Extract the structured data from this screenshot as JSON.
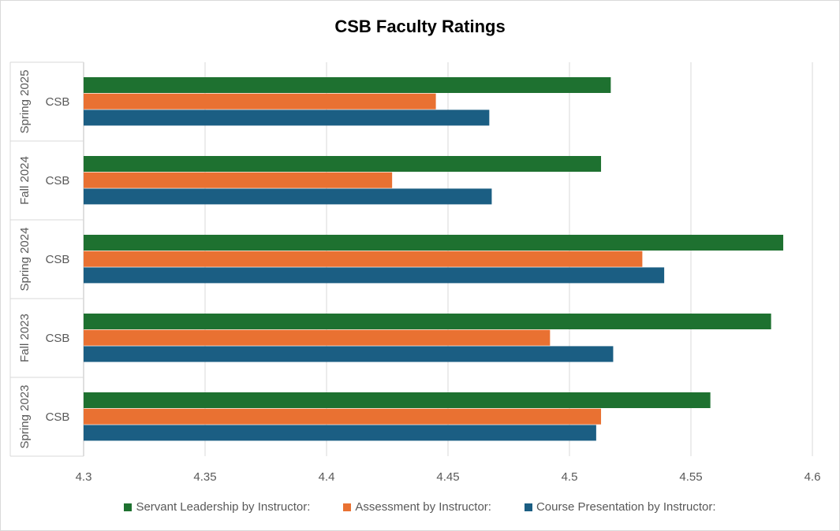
{
  "chart_data": {
    "type": "bar",
    "orientation": "horizontal",
    "title": "CSB Faculty Ratings",
    "categories": [
      {
        "group": "Spring 2023",
        "label": "CSB"
      },
      {
        "group": "Fall 2023",
        "label": "CSB"
      },
      {
        "group": "Spring 2024",
        "label": "CSB"
      },
      {
        "group": "Fall 2024",
        "label": "CSB"
      },
      {
        "group": "Spring 2025",
        "label": "CSB"
      }
    ],
    "series": [
      {
        "name": "Course Presentation by Instructor:",
        "color": "#1b5e83",
        "values": [
          4.511,
          4.518,
          4.539,
          4.468,
          4.467
        ]
      },
      {
        "name": "Assessment by Instructor:",
        "color": "#e97132",
        "values": [
          4.513,
          4.492,
          4.53,
          4.427,
          4.445
        ]
      },
      {
        "name": "Servant Leadership by Instructor:",
        "color": "#1e7130",
        "values": [
          4.558,
          4.583,
          4.588,
          4.513,
          4.517
        ]
      }
    ],
    "xlim": [
      4.3,
      4.6
    ],
    "xticks": [
      "4.3",
      "4.35",
      "4.4",
      "4.45",
      "4.5",
      "4.55",
      "4.6"
    ],
    "grid": true,
    "legend": "bottom"
  }
}
